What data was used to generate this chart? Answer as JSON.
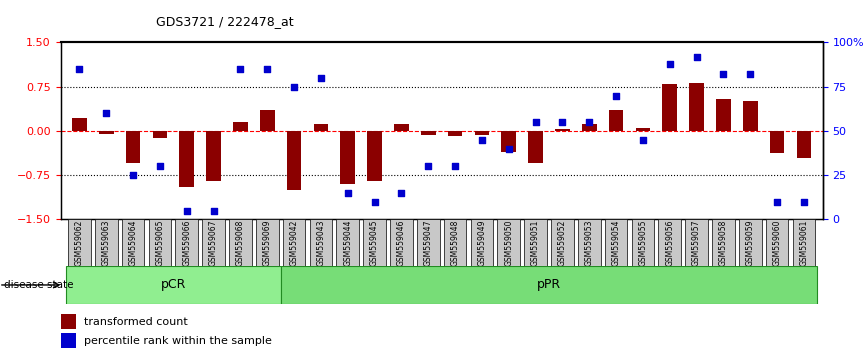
{
  "title": "GDS3721 / 222478_at",
  "samples": [
    "GSM559062",
    "GSM559063",
    "GSM559064",
    "GSM559065",
    "GSM559066",
    "GSM559067",
    "GSM559068",
    "GSM559069",
    "GSM559042",
    "GSM559043",
    "GSM559044",
    "GSM559045",
    "GSM559046",
    "GSM559047",
    "GSM559048",
    "GSM559049",
    "GSM559050",
    "GSM559051",
    "GSM559052",
    "GSM559053",
    "GSM559054",
    "GSM559055",
    "GSM559056",
    "GSM559057",
    "GSM559058",
    "GSM559059",
    "GSM559060",
    "GSM559061"
  ],
  "transformed_count": [
    0.22,
    -0.05,
    -0.55,
    -0.12,
    -0.95,
    -0.85,
    0.15,
    0.35,
    -1.0,
    0.12,
    -0.9,
    -0.85,
    0.12,
    -0.07,
    -0.08,
    -0.07,
    -0.35,
    -0.55,
    0.03,
    0.12,
    0.35,
    0.05,
    0.8,
    0.82,
    0.55,
    0.5,
    -0.38,
    -0.45
  ],
  "percentile_rank": [
    85,
    60,
    25,
    30,
    5,
    5,
    85,
    85,
    75,
    80,
    15,
    10,
    15,
    30,
    30,
    45,
    40,
    55,
    55,
    55,
    70,
    45,
    88,
    92,
    82,
    82,
    10,
    10
  ],
  "group_labels": [
    "pCR",
    "pPR"
  ],
  "group_sizes": [
    8,
    20
  ],
  "bar_color": "#8B0000",
  "dot_color": "#0000CD",
  "left_ylim": [
    -1.5,
    1.5
  ],
  "left_yticks": [
    -1.5,
    -0.75,
    0.0,
    0.75,
    1.5
  ],
  "hline_vals": [
    -0.75,
    0.0,
    0.75
  ],
  "hline_styles": [
    "dotted",
    "dashed",
    "dotted"
  ],
  "hline_colors": [
    "black",
    "red",
    "black"
  ],
  "disease_state_label": "disease state",
  "legend_items": [
    "transformed count",
    "percentile rank within the sample"
  ],
  "legend_colors": [
    "#8B0000",
    "#0000CD"
  ],
  "pcr_color": "#90EE90",
  "ppr_color": "#77DD77",
  "group_border_color": "#228B22"
}
